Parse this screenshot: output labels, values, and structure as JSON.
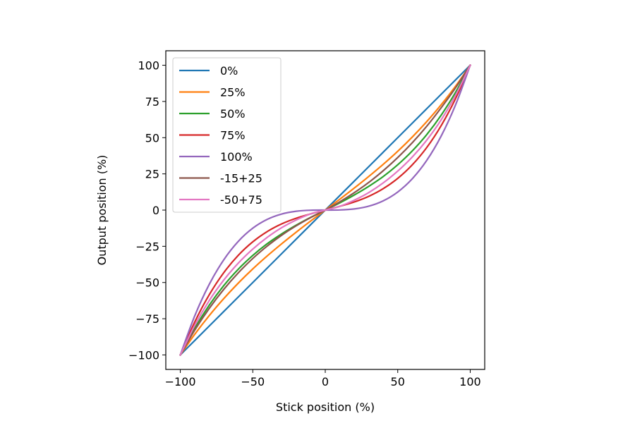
{
  "chart_data": {
    "type": "line",
    "xlabel": "Stick position (%)",
    "ylabel": "Output position (%)",
    "xlim": [
      -110,
      110
    ],
    "ylim": [
      -110,
      110
    ],
    "x_ticks": [
      -100,
      -50,
      0,
      50,
      100
    ],
    "y_ticks": [
      -100,
      -75,
      -50,
      -25,
      0,
      25,
      50,
      75,
      100
    ],
    "x_tick_labels": [
      "−100",
      "−50",
      "0",
      "50",
      "100"
    ],
    "y_tick_labels": [
      "−100",
      "−75",
      "−50",
      "−25",
      "0",
      "25",
      "50",
      "75",
      "100"
    ],
    "grid": false,
    "legend_position": "top-left",
    "x": [
      -100,
      -90,
      -80,
      -70,
      -60,
      -50,
      -40,
      -30,
      -20,
      -10,
      0,
      10,
      20,
      30,
      40,
      50,
      60,
      70,
      80,
      90,
      100
    ],
    "series": [
      {
        "name": "0%",
        "color": "#1f77b4",
        "values": [
          -100,
          -90,
          -80,
          -70,
          -60,
          -50,
          -40,
          -30,
          -20,
          -10,
          0,
          10,
          20,
          30,
          40,
          50,
          60,
          70,
          80,
          90,
          100
        ]
      },
      {
        "name": "25%",
        "color": "#ff7f0e",
        "values": [
          -100,
          -85.7,
          -72.8,
          -61.1,
          -50.4,
          -40.6,
          -31.6,
          -23.2,
          -15.2,
          -7.5,
          0,
          7.5,
          15.2,
          23.2,
          31.6,
          40.6,
          50.4,
          61.1,
          72.8,
          85.7,
          100
        ]
      },
      {
        "name": "50%",
        "color": "#2ca02c",
        "values": [
          -100,
          -81.5,
          -65.6,
          -52.1,
          -40.8,
          -31.3,
          -23.2,
          -16.4,
          -10.4,
          -5.0,
          0,
          5.0,
          10.4,
          16.4,
          23.2,
          31.3,
          40.8,
          52.1,
          65.6,
          81.5,
          100
        ]
      },
      {
        "name": "75%",
        "color": "#d62728",
        "values": [
          -100,
          -77.2,
          -58.4,
          -43.2,
          -31.2,
          -21.9,
          -14.8,
          -9.5,
          -5.6,
          -2.6,
          0,
          2.6,
          5.6,
          9.5,
          14.8,
          21.9,
          31.2,
          43.2,
          58.4,
          77.2,
          100
        ]
      },
      {
        "name": "100%",
        "color": "#9467bd",
        "values": [
          -100,
          -72.9,
          -51.2,
          -34.3,
          -21.6,
          -12.5,
          -6.4,
          -2.7,
          -0.8,
          -0.1,
          0,
          0.1,
          0.8,
          2.7,
          6.4,
          12.5,
          21.6,
          34.3,
          51.2,
          72.9,
          100
        ]
      },
      {
        "name": "-15+25",
        "color": "#8c564b",
        "values": [
          -100,
          -82.8,
          -67.8,
          -54.7,
          -43.3,
          -33.4,
          -24.8,
          -17.3,
          -10.8,
          -5.1,
          0,
          5.7,
          12.0,
          19.1,
          27.2,
          36.3,
          46.5,
          57.9,
          70.7,
          84.6,
          100
        ]
      },
      {
        "name": "-50+75",
        "color": "#e377c2",
        "values": [
          -100,
          -79.5,
          -62.4,
          -48.3,
          -36.6,
          -26.9,
          -18.8,
          -12.1,
          -6.8,
          -2.6,
          0,
          2.6,
          6.8,
          12.1,
          18.8,
          26.9,
          36.6,
          48.3,
          62.4,
          79.5,
          100
        ]
      }
    ]
  }
}
